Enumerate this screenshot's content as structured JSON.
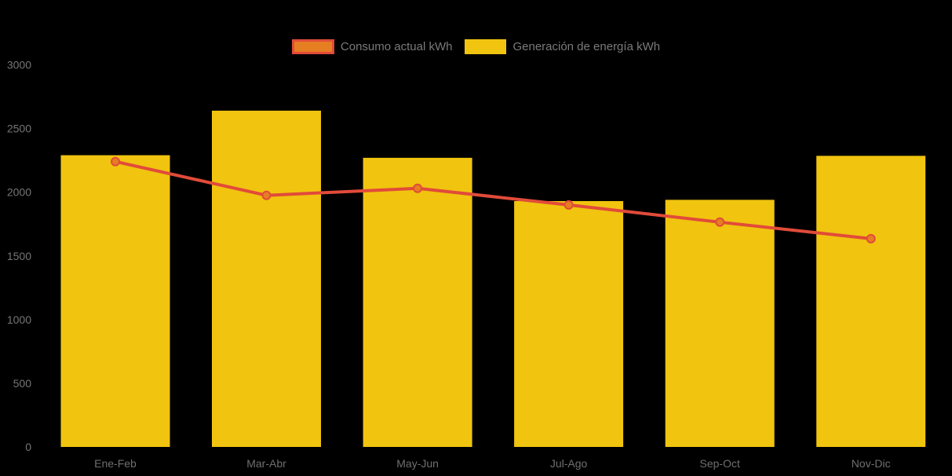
{
  "chart": {
    "legend": [
      {
        "id": "consumo",
        "label": "Consumo actual kWh",
        "swatch": "line-series"
      },
      {
        "id": "generacion",
        "label": "Generación de energía kWh",
        "swatch": "bar-series"
      }
    ],
    "colors": {
      "background": "#000000",
      "bar_fill": "#F1C40F",
      "line_stroke": "#E14B39",
      "marker_fill": "#E67E22",
      "marker_stroke": "#E14B39",
      "y_axis_text": "#757575",
      "x_axis_text": "#6F6F6F",
      "legend_text": "#7A7A7A"
    }
  },
  "chart_data": {
    "type": "bar",
    "title": "",
    "xlabel": "",
    "ylabel": "",
    "categories": [
      "Ene-Feb",
      "Mar-Abr",
      "May-Jun",
      "Jul-Ago",
      "Sep-Oct",
      "Nov-Dic"
    ],
    "series": [
      {
        "name": "Consumo actual kWh",
        "type": "line",
        "values": [
          2240,
          1975,
          2030,
          1900,
          1765,
          1635
        ]
      },
      {
        "name": "Generación de energía kWh",
        "type": "bar",
        "values": [
          2290,
          2640,
          2270,
          1930,
          1940,
          2285
        ]
      }
    ],
    "ylim": [
      0,
      3000
    ],
    "yticks": [
      0,
      500,
      1000,
      1500,
      2000,
      2500,
      3000
    ],
    "grid": false,
    "legend_position": "top-center",
    "unit": "kWh"
  }
}
